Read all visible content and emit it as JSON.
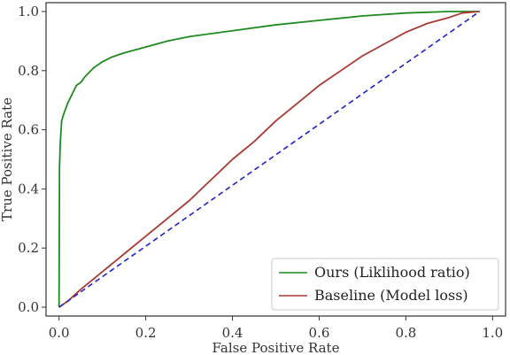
{
  "chart_data": {
    "type": "line",
    "title": "",
    "xlabel": "False Positive Rate",
    "ylabel": "True Positive Rate",
    "xlim": [
      -0.03,
      1.03
    ],
    "ylim": [
      -0.03,
      1.03
    ],
    "xticks": [
      0.0,
      0.2,
      0.4,
      0.6,
      0.8,
      1.0
    ],
    "yticks": [
      0.0,
      0.2,
      0.4,
      0.6,
      0.8,
      1.0
    ],
    "xtick_labels": [
      "0.0",
      "0.2",
      "0.4",
      "0.6",
      "0.8",
      "1.0"
    ],
    "ytick_labels": [
      "0.0",
      "0.2",
      "0.4",
      "0.6",
      "0.8",
      "1.0"
    ],
    "grid": false,
    "legend_position": "lower right",
    "series": [
      {
        "name": "Ours (Liklihood ratio)",
        "color": "#1f8a1f",
        "style": "solid",
        "x": [
          0.0,
          0.001,
          0.003,
          0.006,
          0.01,
          0.015,
          0.02,
          0.03,
          0.04,
          0.05,
          0.06,
          0.08,
          0.1,
          0.12,
          0.15,
          0.2,
          0.25,
          0.3,
          0.4,
          0.5,
          0.6,
          0.7,
          0.8,
          0.9,
          0.97
        ],
        "y": [
          0.0,
          0.47,
          0.56,
          0.63,
          0.65,
          0.67,
          0.69,
          0.72,
          0.75,
          0.76,
          0.78,
          0.81,
          0.83,
          0.845,
          0.86,
          0.88,
          0.9,
          0.915,
          0.935,
          0.955,
          0.97,
          0.985,
          0.995,
          1.0,
          1.0
        ]
      },
      {
        "name": "Baseline (Model loss)",
        "color": "#a83a32",
        "style": "solid",
        "x": [
          0.0,
          0.02,
          0.05,
          0.1,
          0.15,
          0.2,
          0.25,
          0.3,
          0.35,
          0.4,
          0.45,
          0.5,
          0.55,
          0.6,
          0.65,
          0.7,
          0.75,
          0.8,
          0.85,
          0.9,
          0.93,
          0.97
        ],
        "y": [
          0.0,
          0.02,
          0.06,
          0.12,
          0.18,
          0.24,
          0.3,
          0.36,
          0.43,
          0.5,
          0.56,
          0.63,
          0.69,
          0.75,
          0.8,
          0.85,
          0.89,
          0.93,
          0.96,
          0.98,
          0.995,
          1.0
        ]
      },
      {
        "name": "",
        "color": "#2222cc",
        "style": "dashed",
        "x": [
          0.0,
          0.97
        ],
        "y": [
          0.0,
          1.0
        ]
      }
    ]
  }
}
